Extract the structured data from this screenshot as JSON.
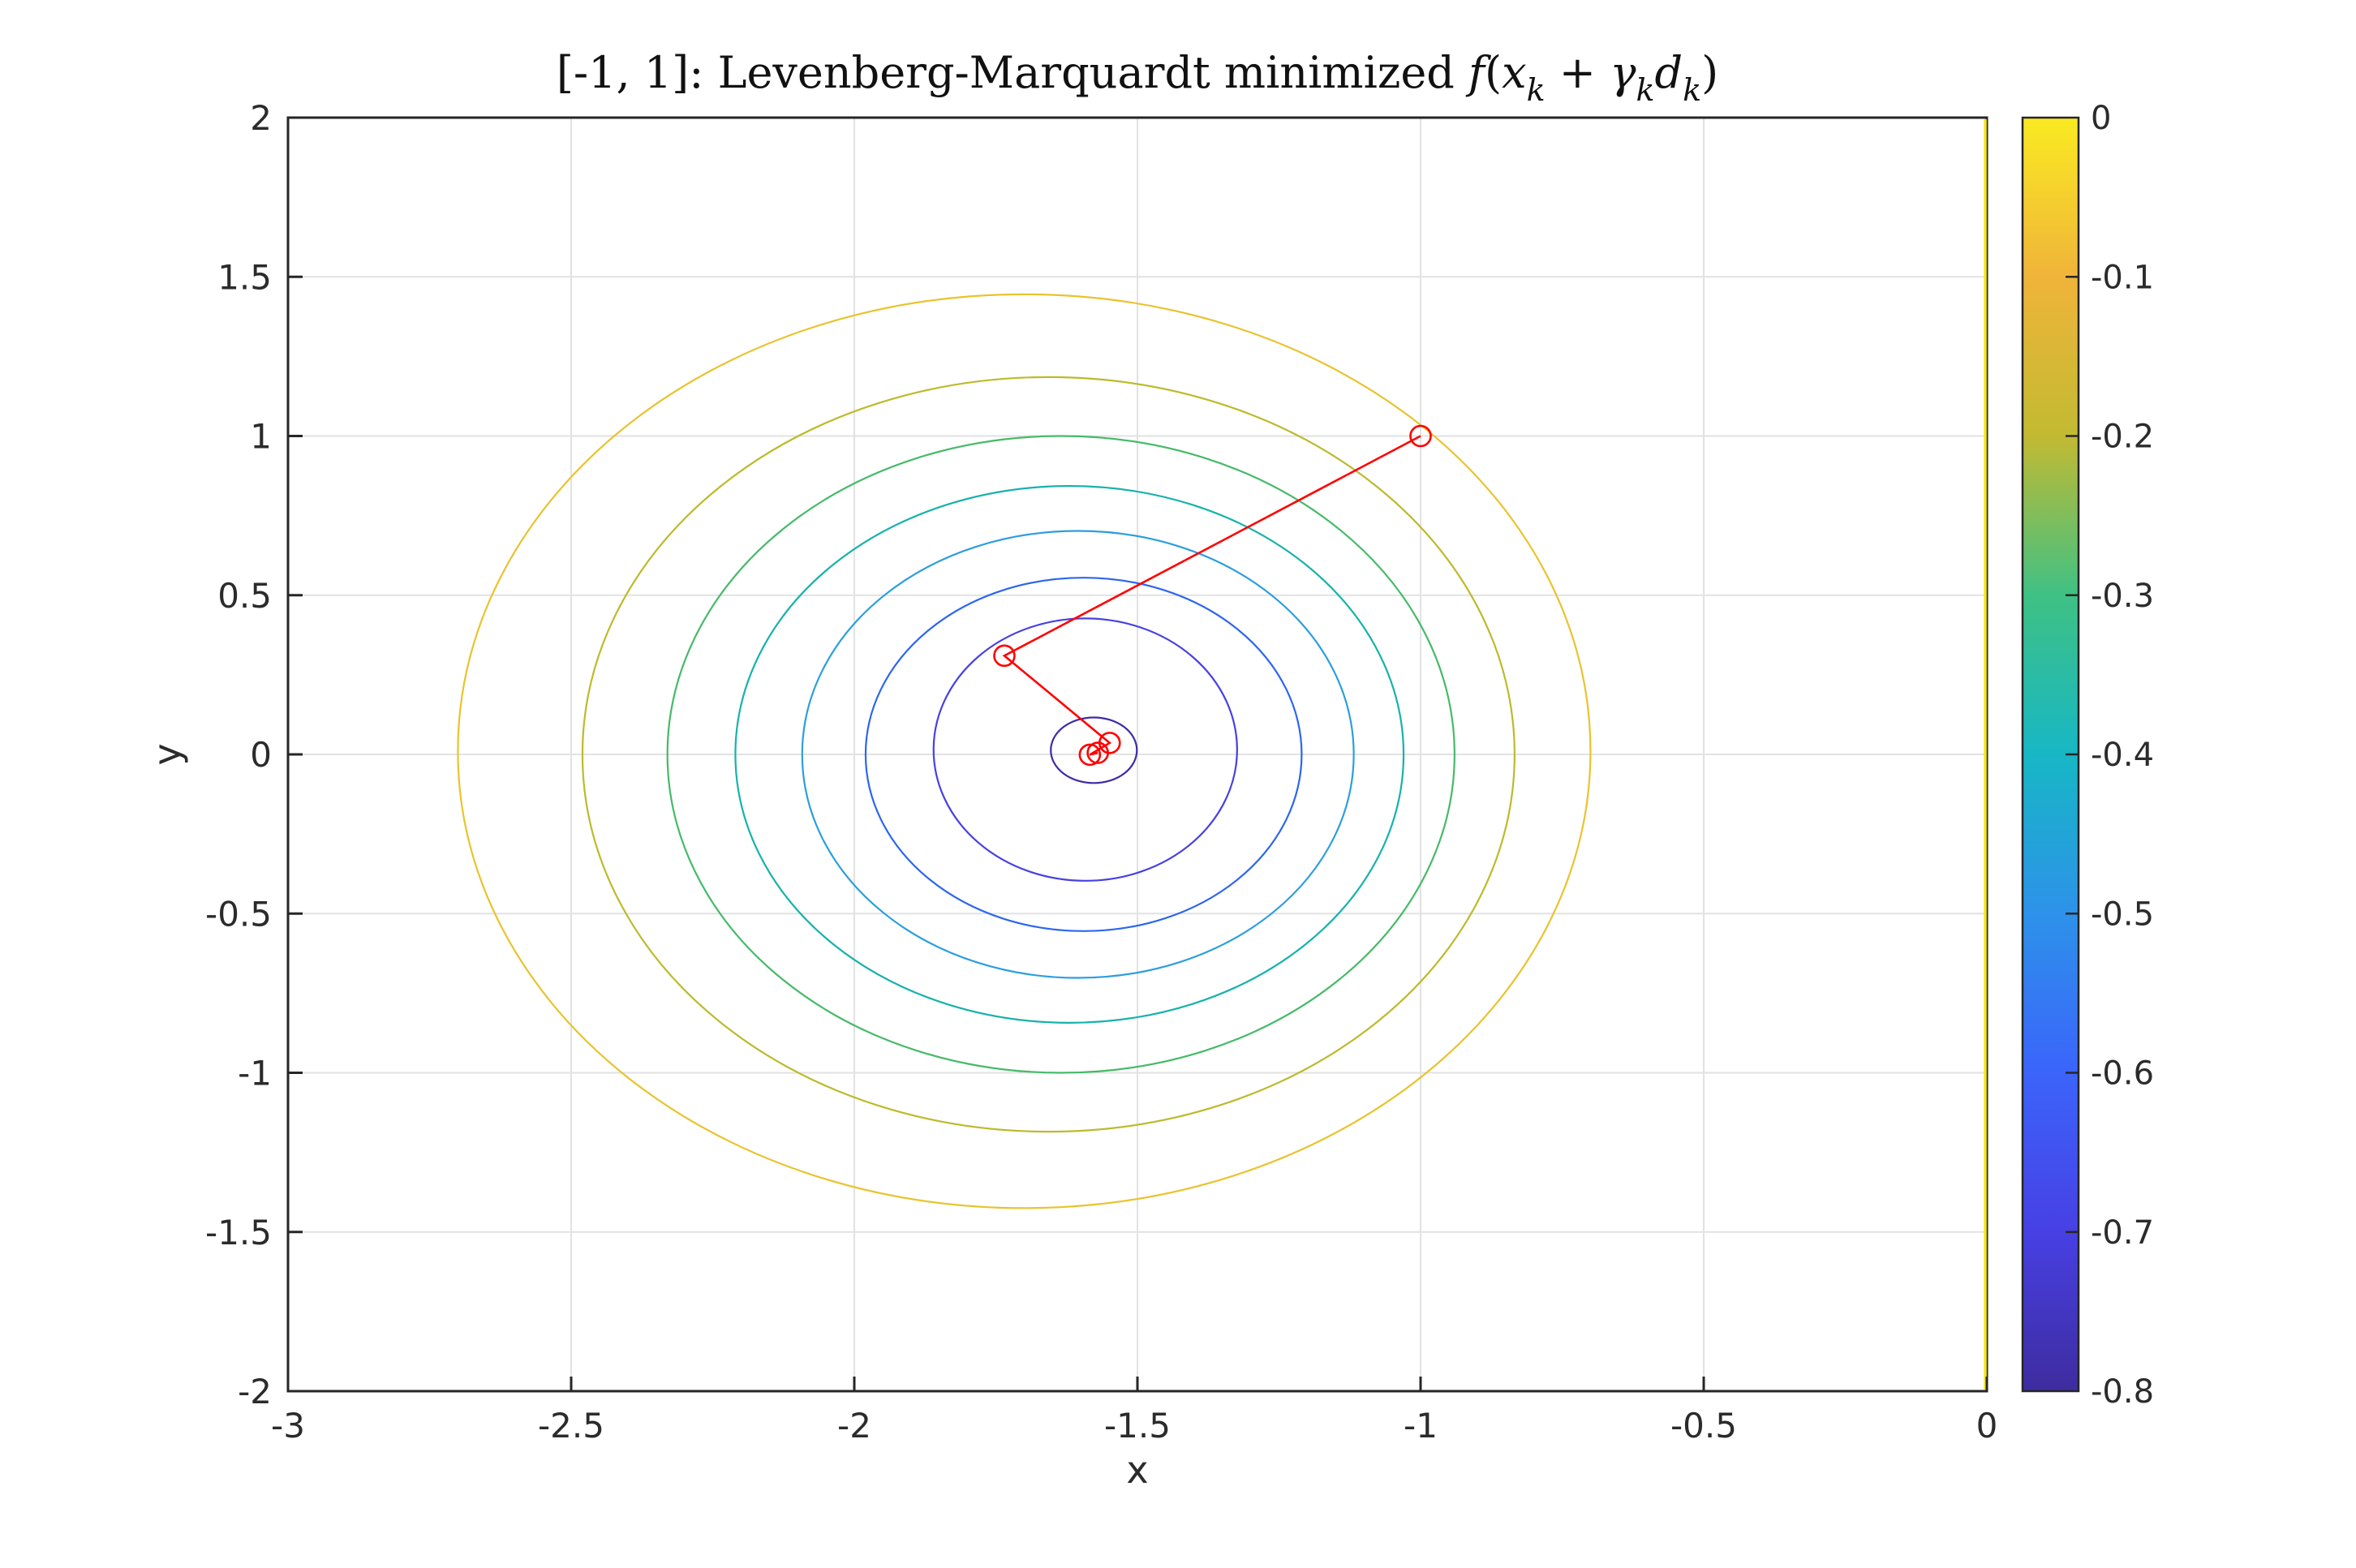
{
  "figure": {
    "background": "#ffffff"
  },
  "title": {
    "plain": "[-1, 1]: Levenberg-Marquardt minimized f(x_k + γ_k d_k)",
    "segments": [
      {
        "text": "[-1, 1]: Levenberg-Marquardt minimized ",
        "italic": false,
        "sub": false
      },
      {
        "text": "f",
        "italic": true,
        "sub": false
      },
      {
        "text": "(",
        "italic": false,
        "sub": false
      },
      {
        "text": "x",
        "italic": true,
        "sub": false
      },
      {
        "text": "k",
        "italic": true,
        "sub": true
      },
      {
        "text": " + ",
        "italic": false,
        "sub": false
      },
      {
        "text": "γ",
        "italic": true,
        "sub": false
      },
      {
        "text": "k",
        "italic": true,
        "sub": true
      },
      {
        "text": "d",
        "italic": true,
        "sub": false
      },
      {
        "text": "k",
        "italic": true,
        "sub": true
      },
      {
        "text": ")",
        "italic": false,
        "sub": false
      }
    ]
  },
  "chart_data": {
    "type": "contour",
    "title": "[-1, 1]: Levenberg-Marquardt minimized f(x_k + γ_k d_k)",
    "xlabel": "x",
    "ylabel": "y",
    "xlim": [
      -3,
      0
    ],
    "ylim": [
      -2,
      2
    ],
    "grid": true,
    "axis_color": "#262626",
    "grid_color": "#e2e2e2",
    "x_ticks": [
      -3,
      -2.5,
      -2,
      -1.5,
      -1,
      -0.5,
      0
    ],
    "x_tick_labels": [
      "-3",
      "-2.5",
      "-2",
      "-1.5",
      "-1",
      "-0.5",
      "0"
    ],
    "y_ticks": [
      -2,
      -1.5,
      -1,
      -0.5,
      0,
      0.5,
      1,
      1.5,
      2
    ],
    "y_tick_labels": [
      "-2",
      "-1.5",
      "-1",
      "-0.5",
      "0",
      "0.5",
      "1",
      "1.5",
      "2"
    ],
    "contours": [
      {
        "level": -0.1,
        "color": "#e9c32e",
        "cx": -1.7,
        "cy": 0.01,
        "rx": 1.0,
        "ry": 1.435
      },
      {
        "level": -0.2,
        "color": "#bdba2c",
        "cx": -1.657,
        "cy": 0.0,
        "rx": 0.823,
        "ry": 1.185
      },
      {
        "level": -0.3,
        "color": "#46ba68",
        "cx": -1.635,
        "cy": 0.0,
        "rx": 0.695,
        "ry": 1.0
      },
      {
        "level": -0.4,
        "color": "#17b2ab",
        "cx": -1.62,
        "cy": 0.0,
        "rx": 0.59,
        "ry": 0.843
      },
      {
        "level": -0.5,
        "color": "#2c9ede",
        "cx": -1.605,
        "cy": 0.0,
        "rx": 0.487,
        "ry": 0.702
      },
      {
        "level": -0.6,
        "color": "#2c66ef",
        "cx": -1.595,
        "cy": 0.0,
        "rx": 0.385,
        "ry": 0.555
      },
      {
        "level": -0.7,
        "color": "#4741e2",
        "cx": -1.592,
        "cy": 0.015,
        "rx": 0.268,
        "ry": 0.412
      },
      {
        "level": -0.8,
        "color": "#3d2ca4",
        "cx": -1.577,
        "cy": 0.013,
        "rx": 0.076,
        "ry": 0.103
      }
    ],
    "zero_level_line": {
      "level": 0,
      "color": "#f6e620",
      "x": 0
    },
    "path": {
      "color": "#ff0000",
      "points": [
        [
          -1.0,
          1.0
        ],
        [
          -1.735,
          0.31
        ],
        [
          -1.549,
          0.036
        ],
        [
          -1.584,
          -0.001
        ],
        [
          -1.57,
          0.005
        ]
      ]
    },
    "colorbar": {
      "min": -0.8,
      "max": 0,
      "tick_values": [
        0,
        -0.1,
        -0.2,
        -0.3,
        -0.4,
        -0.5,
        -0.6,
        -0.7,
        -0.8
      ],
      "tick_labels": [
        "0",
        "-0.1",
        "-0.2",
        "-0.3",
        "-0.4",
        "-0.5",
        "-0.6",
        "-0.7",
        "-0.8"
      ],
      "gradient_stops": [
        {
          "value": 0.0,
          "color": "#f9ea21"
        },
        {
          "value": -0.1,
          "color": "#f0b43a"
        },
        {
          "value": -0.2,
          "color": "#c2ba32"
        },
        {
          "value": -0.3,
          "color": "#3fc184"
        },
        {
          "value": -0.4,
          "color": "#17b7c5"
        },
        {
          "value": -0.5,
          "color": "#2d92e9"
        },
        {
          "value": -0.6,
          "color": "#3b64fb"
        },
        {
          "value": -0.7,
          "color": "#4740e4"
        },
        {
          "value": -0.8,
          "color": "#3e2c9e"
        }
      ]
    }
  }
}
